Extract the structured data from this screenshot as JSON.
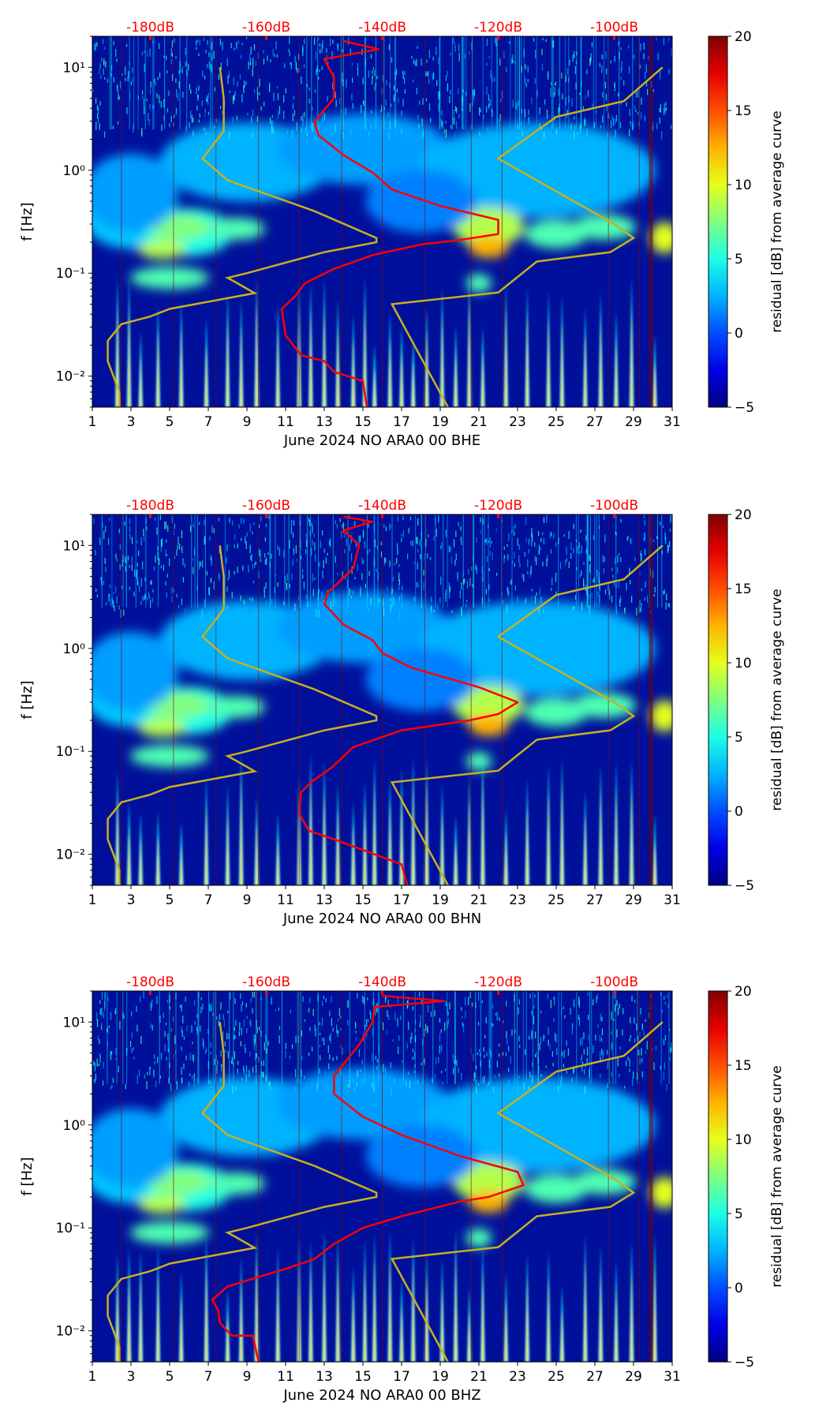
{
  "figure": {
    "colormap": "jet",
    "colorbar": {
      "label": "residual [dB] from average curve",
      "min": -5,
      "max": 20,
      "ticks": [
        -5,
        0,
        5,
        10,
        15,
        20
      ]
    },
    "db_scale_ticks": [
      "-180dB",
      "-160dB",
      "-140dB",
      "-120dB",
      "-100dB"
    ],
    "db_scale_color": "#ff0000",
    "reference_curve_color": "#c8b020",
    "psd_curve_color": "#ff0000"
  },
  "chart_data": [
    {
      "type": "heatmap",
      "xlabel": "June 2024 NO ARA0 00 BHE",
      "ylabel": "f [Hz]",
      "xlim": [
        1,
        31
      ],
      "ylim_hz": [
        0.005,
        20
      ],
      "y_scale": "log",
      "xticks": [
        1,
        3,
        5,
        7,
        9,
        11,
        13,
        15,
        17,
        19,
        21,
        23,
        25,
        27,
        29,
        31
      ],
      "yticks": [
        {
          "value": 0.01,
          "label": "10⁻²"
        },
        {
          "value": 0.1,
          "label": "10⁻¹"
        },
        {
          "value": 1,
          "label": "10⁰"
        },
        {
          "value": 10,
          "label": "10¹"
        }
      ],
      "reference_curve_db_day": [
        [
          2.4,
          0.005
        ],
        [
          2.4,
          0.007
        ],
        [
          1.8,
          0.014
        ],
        [
          1.8,
          0.022
        ],
        [
          2.5,
          0.032
        ],
        [
          4,
          0.038
        ],
        [
          5,
          0.045
        ],
        [
          7.5,
          0.055
        ],
        [
          9.4,
          0.064
        ],
        [
          8.4,
          0.082
        ],
        [
          8,
          0.09
        ],
        [
          9,
          0.1
        ],
        [
          13,
          0.16
        ],
        [
          15.7,
          0.2
        ],
        [
          15.7,
          0.22
        ],
        [
          12.5,
          0.4
        ],
        [
          8,
          0.8
        ],
        [
          6.7,
          1.3
        ],
        [
          7.8,
          2.4
        ],
        [
          7.8,
          5
        ],
        [
          7.6,
          10
        ]
      ],
      "reference_curve_db_day_2": [
        [
          19.4,
          0.005
        ],
        [
          16.5,
          0.05
        ],
        [
          22,
          0.065
        ],
        [
          24,
          0.13
        ],
        [
          27.8,
          0.16
        ],
        [
          29,
          0.22
        ],
        [
          28,
          0.3
        ],
        [
          22,
          1.3
        ],
        [
          25,
          3.3
        ],
        [
          28.5,
          4.7
        ],
        [
          30.5,
          10
        ]
      ],
      "psd_curve_db_day": [
        [
          15.2,
          0.005
        ],
        [
          15,
          0.009
        ],
        [
          13.5,
          0.011
        ],
        [
          13,
          0.014
        ],
        [
          11.8,
          0.016
        ],
        [
          11,
          0.025
        ],
        [
          10.8,
          0.045
        ],
        [
          11.5,
          0.06
        ],
        [
          12,
          0.08
        ],
        [
          13.5,
          0.11
        ],
        [
          15.5,
          0.15
        ],
        [
          18,
          0.19
        ],
        [
          20,
          0.21
        ],
        [
          22,
          0.24
        ],
        [
          22,
          0.33
        ],
        [
          19,
          0.45
        ],
        [
          16.5,
          0.65
        ],
        [
          15.5,
          0.95
        ],
        [
          14,
          1.4
        ],
        [
          12.7,
          2.2
        ],
        [
          12.5,
          3
        ],
        [
          13.5,
          5
        ],
        [
          13.5,
          8
        ],
        [
          13,
          12
        ],
        [
          15.8,
          15
        ],
        [
          14,
          18
        ]
      ],
      "event_days": [
        2.3,
        2.9,
        3.5,
        4.4,
        5.6,
        6.9,
        8.0,
        8.7,
        9.5,
        10.6,
        11.7,
        12.3,
        13.0,
        13.7,
        14.5,
        15.1,
        15.6,
        16.4,
        17.0,
        17.6,
        18.3,
        19.1,
        19.8,
        20.5,
        21.2,
        22.4,
        23.5,
        24.6,
        25.3,
        26.5,
        27.3,
        28.1,
        28.9,
        30.1
      ]
    },
    {
      "type": "heatmap",
      "xlabel": "June 2024 NO ARA0 00 BHN",
      "ylabel": "f [Hz]",
      "xlim": [
        1,
        31
      ],
      "ylim_hz": [
        0.005,
        20
      ],
      "y_scale": "log",
      "xticks": [
        1,
        3,
        5,
        7,
        9,
        11,
        13,
        15,
        17,
        19,
        21,
        23,
        25,
        27,
        29,
        31
      ],
      "yticks": [
        {
          "value": 0.01,
          "label": "10⁻²"
        },
        {
          "value": 0.1,
          "label": "10⁻¹"
        },
        {
          "value": 1,
          "label": "10⁰"
        },
        {
          "value": 10,
          "label": "10¹"
        }
      ],
      "reference_curve_db_day": [
        [
          2.4,
          0.005
        ],
        [
          2.4,
          0.007
        ],
        [
          1.8,
          0.014
        ],
        [
          1.8,
          0.022
        ],
        [
          2.5,
          0.032
        ],
        [
          4,
          0.038
        ],
        [
          5,
          0.045
        ],
        [
          7.5,
          0.055
        ],
        [
          9.4,
          0.064
        ],
        [
          8.4,
          0.082
        ],
        [
          8,
          0.09
        ],
        [
          9,
          0.1
        ],
        [
          13,
          0.16
        ],
        [
          15.7,
          0.2
        ],
        [
          15.7,
          0.22
        ],
        [
          12.5,
          0.4
        ],
        [
          8,
          0.8
        ],
        [
          6.7,
          1.3
        ],
        [
          7.8,
          2.4
        ],
        [
          7.8,
          5
        ],
        [
          7.6,
          10
        ]
      ],
      "reference_curve_db_day_2": [
        [
          19.4,
          0.005
        ],
        [
          16.5,
          0.05
        ],
        [
          22,
          0.065
        ],
        [
          24,
          0.13
        ],
        [
          27.8,
          0.16
        ],
        [
          29,
          0.22
        ],
        [
          28,
          0.3
        ],
        [
          22,
          1.3
        ],
        [
          25,
          3.3
        ],
        [
          28.5,
          4.7
        ],
        [
          30.5,
          10
        ]
      ],
      "psd_curve_db_day": [
        [
          17.3,
          0.005
        ],
        [
          17,
          0.008
        ],
        [
          15,
          0.011
        ],
        [
          13.5,
          0.014
        ],
        [
          12.2,
          0.017
        ],
        [
          11.7,
          0.025
        ],
        [
          11.8,
          0.04
        ],
        [
          12.3,
          0.05
        ],
        [
          13.4,
          0.07
        ],
        [
          14.5,
          0.11
        ],
        [
          17,
          0.16
        ],
        [
          20.5,
          0.2
        ],
        [
          22,
          0.23
        ],
        [
          23,
          0.3
        ],
        [
          21,
          0.42
        ],
        [
          17.5,
          0.65
        ],
        [
          16,
          0.9
        ],
        [
          15.5,
          1.2
        ],
        [
          14,
          1.7
        ],
        [
          13,
          2.7
        ],
        [
          13.2,
          3.5
        ],
        [
          14.5,
          6
        ],
        [
          14.8,
          10
        ],
        [
          14,
          14
        ],
        [
          15.5,
          17
        ],
        [
          14,
          19
        ]
      ],
      "event_days": [
        2.3,
        2.9,
        3.5,
        4.4,
        5.6,
        6.9,
        8.0,
        8.7,
        9.5,
        10.6,
        11.7,
        12.3,
        13.0,
        13.7,
        14.5,
        15.1,
        15.6,
        16.4,
        17.0,
        17.6,
        18.3,
        19.1,
        19.8,
        20.5,
        21.2,
        22.4,
        23.5,
        24.6,
        25.3,
        26.5,
        27.3,
        28.1,
        28.9,
        30.1
      ]
    },
    {
      "type": "heatmap",
      "xlabel": "June 2024 NO ARA0 00 BHZ",
      "ylabel": "f [Hz]",
      "xlim": [
        1,
        31
      ],
      "ylim_hz": [
        0.005,
        20
      ],
      "y_scale": "log",
      "xticks": [
        1,
        3,
        5,
        7,
        9,
        11,
        13,
        15,
        17,
        19,
        21,
        23,
        25,
        27,
        29,
        31
      ],
      "yticks": [
        {
          "value": 0.01,
          "label": "10⁻²"
        },
        {
          "value": 0.1,
          "label": "10⁻¹"
        },
        {
          "value": 1,
          "label": "10⁰"
        },
        {
          "value": 10,
          "label": "10¹"
        }
      ],
      "reference_curve_db_day": [
        [
          2.4,
          0.005
        ],
        [
          2.4,
          0.007
        ],
        [
          1.8,
          0.014
        ],
        [
          1.8,
          0.022
        ],
        [
          2.5,
          0.032
        ],
        [
          4,
          0.038
        ],
        [
          5,
          0.045
        ],
        [
          7.5,
          0.055
        ],
        [
          9.4,
          0.064
        ],
        [
          8.4,
          0.082
        ],
        [
          8,
          0.09
        ],
        [
          9,
          0.1
        ],
        [
          13,
          0.16
        ],
        [
          15.7,
          0.2
        ],
        [
          15.7,
          0.22
        ],
        [
          12.5,
          0.4
        ],
        [
          8,
          0.8
        ],
        [
          6.7,
          1.3
        ],
        [
          7.8,
          2.4
        ],
        [
          7.8,
          5
        ],
        [
          7.6,
          10
        ]
      ],
      "reference_curve_db_day_2": [
        [
          19.4,
          0.005
        ],
        [
          16.5,
          0.05
        ],
        [
          22,
          0.065
        ],
        [
          24,
          0.13
        ],
        [
          27.8,
          0.16
        ],
        [
          29,
          0.22
        ],
        [
          28,
          0.3
        ],
        [
          22,
          1.3
        ],
        [
          25,
          3.3
        ],
        [
          28.5,
          4.7
        ],
        [
          30.5,
          10
        ]
      ],
      "psd_curve_db_day": [
        [
          9.6,
          0.005
        ],
        [
          9.3,
          0.009
        ],
        [
          8.2,
          0.009
        ],
        [
          7.6,
          0.012
        ],
        [
          7.5,
          0.016
        ],
        [
          7.2,
          0.02
        ],
        [
          8,
          0.027
        ],
        [
          9.5,
          0.033
        ],
        [
          11,
          0.04
        ],
        [
          12.5,
          0.05
        ],
        [
          13.5,
          0.07
        ],
        [
          15,
          0.1
        ],
        [
          17,
          0.13
        ],
        [
          20,
          0.18
        ],
        [
          21.5,
          0.2
        ],
        [
          23.3,
          0.26
        ],
        [
          23,
          0.35
        ],
        [
          20,
          0.5
        ],
        [
          17,
          0.8
        ],
        [
          15,
          1.2
        ],
        [
          13.5,
          2
        ],
        [
          13.5,
          3
        ],
        [
          14.8,
          6
        ],
        [
          15.5,
          10
        ],
        [
          15.6,
          14
        ],
        [
          19.2,
          16
        ],
        [
          16,
          18
        ]
      ],
      "event_days": [
        2.3,
        2.9,
        3.5,
        4.4,
        5.6,
        6.9,
        8.0,
        8.7,
        9.5,
        10.6,
        11.7,
        12.3,
        13.0,
        13.7,
        14.5,
        15.1,
        15.6,
        16.4,
        17.0,
        17.6,
        18.3,
        19.1,
        19.8,
        20.5,
        21.2,
        22.4,
        23.5,
        24.6,
        25.3,
        26.5,
        27.3,
        28.1,
        28.9,
        30.1
      ]
    }
  ]
}
